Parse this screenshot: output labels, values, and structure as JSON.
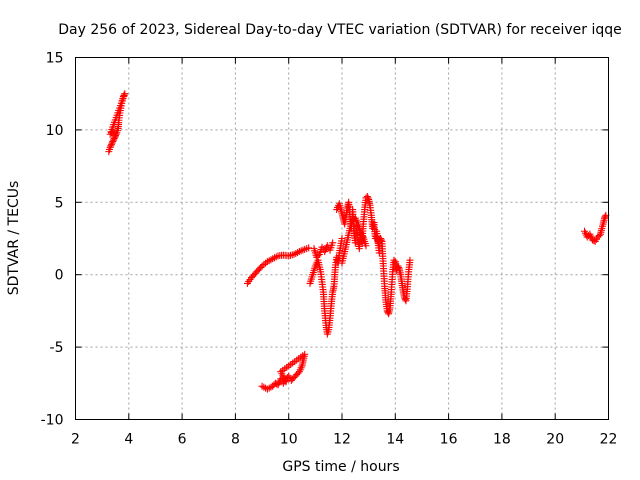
{
  "chart_data": {
    "type": "scatter",
    "title": "Day 256 of 2023, Sidereal Day-to-day VTEC variation (SDTVAR) for receiver iqqe",
    "xlabel": "GPS time / hours",
    "ylabel": "SDTVAR / TECUs",
    "xlim": [
      2,
      22
    ],
    "ylim": [
      -10,
      15
    ],
    "xticks": [
      2,
      4,
      6,
      8,
      10,
      12,
      14,
      16,
      18,
      20,
      22
    ],
    "yticks": [
      15,
      10,
      5,
      0,
      -5,
      -10
    ],
    "grid": true,
    "marker": "plus",
    "series": [
      {
        "name": "SDTVAR",
        "color": "#ff0000",
        "tracks": [
          {
            "x": [
              3.25,
              3.3,
              3.35,
              3.4,
              3.45,
              3.5,
              3.55,
              3.6,
              3.62,
              3.65,
              3.7,
              3.75,
              3.8,
              3.85,
              3.3,
              3.4,
              3.5
            ],
            "y": [
              8.5,
              8.8,
              9.0,
              9.2,
              9.4,
              9.6,
              9.8,
              10.1,
              10.5,
              11.0,
              11.5,
              12.0,
              12.3,
              12.5,
              9.7,
              9.9,
              9.6
            ]
          },
          {
            "x": [
              8.45,
              8.6,
              8.8,
              9.0,
              9.2,
              9.4,
              9.6,
              9.8,
              10.0,
              10.2,
              10.4,
              10.6,
              10.75
            ],
            "y": [
              -0.6,
              -0.2,
              0.2,
              0.6,
              0.9,
              1.1,
              1.3,
              1.35,
              1.3,
              1.4,
              1.6,
              1.75,
              1.85
            ]
          },
          {
            "x": [
              9.0,
              9.2,
              9.4,
              9.5,
              9.6,
              9.7,
              9.8,
              9.9,
              10.0,
              10.1,
              10.2,
              10.3,
              10.4,
              10.5,
              10.55,
              10.6,
              9.7,
              9.9
            ],
            "y": [
              -7.7,
              -7.9,
              -7.7,
              -7.5,
              -7.6,
              -7.2,
              -7.5,
              -7.2,
              -7.0,
              -7.3,
              -7.1,
              -6.9,
              -6.7,
              -6.3,
              -5.9,
              -5.5,
              -6.7,
              -7.4
            ]
          },
          {
            "x": [
              10.8,
              10.9,
              11.0,
              11.1,
              11.2,
              11.3,
              11.35,
              11.4,
              11.45,
              11.5,
              11.55,
              11.6,
              11.65,
              11.7,
              11.75,
              11.8,
              11.85,
              11.9,
              12.0
            ],
            "y": [
              -0.6,
              0.0,
              0.6,
              1.0,
              0.2,
              -1.2,
              -2.5,
              -3.5,
              -4.1,
              -3.8,
              -3.0,
              -2.0,
              -1.2,
              -0.8,
              0.5,
              1.2,
              0.8,
              1.5,
              2.5
            ]
          },
          {
            "x": [
              10.95,
              11.05,
              11.15,
              11.25,
              11.35,
              11.45,
              11.55,
              11.65
            ],
            "y": [
              1.8,
              1.2,
              1.4,
              1.9,
              1.6,
              2.0,
              1.7,
              2.2
            ]
          },
          {
            "x": [
              11.8,
              11.9,
              12.0,
              12.1,
              12.2,
              12.25,
              12.3,
              12.35,
              12.4,
              12.45,
              12.5,
              12.55,
              12.6,
              12.65,
              12.7,
              12.75,
              12.8,
              12.85,
              12.9,
              12.95,
              13.0,
              13.05,
              13.1,
              13.15,
              13.2,
              13.25,
              13.3,
              13.35,
              13.4
            ],
            "y": [
              4.5,
              4.9,
              4.2,
              3.5,
              4.6,
              5.0,
              4.0,
              3.2,
              4.5,
              3.0,
              2.2,
              3.4,
              2.4,
              1.8,
              2.9,
              2.2,
              3.5,
              4.5,
              5.3,
              5.4,
              5.2,
              4.8,
              4.1,
              3.2,
              3.6,
              2.5,
              3.0,
              2.2,
              1.5
            ]
          },
          {
            "x": [
              12.0,
              12.1,
              12.2,
              12.3,
              12.4,
              12.5,
              12.6,
              12.7,
              12.8,
              12.9
            ],
            "y": [
              0.8,
              1.6,
              2.4,
              3.2,
              3.8,
              3.9,
              3.5,
              2.8,
              2.6,
              2.0
            ]
          },
          {
            "x": [
              13.3,
              13.4,
              13.45,
              13.5,
              13.55,
              13.6,
              13.65,
              13.7,
              13.75,
              13.8,
              13.85,
              13.9,
              13.95,
              14.0,
              14.05,
              14.1,
              14.15,
              14.2,
              14.25,
              14.3,
              14.35,
              14.4,
              14.45,
              14.5,
              14.55
            ],
            "y": [
              2.6,
              2.0,
              2.5,
              2.3,
              0.6,
              -0.8,
              -1.9,
              -2.5,
              -2.7,
              -2.3,
              -1.2,
              0.2,
              1.0,
              0.9,
              0.3,
              0.6,
              0.4,
              0.0,
              -0.6,
              -1.2,
              -1.6,
              -1.8,
              -1.0,
              0.2,
              1.0
            ]
          },
          {
            "x": [
              21.1,
              21.2,
              21.3,
              21.4,
              21.5,
              21.6,
              21.7,
              21.75,
              21.8,
              21.85,
              21.9
            ],
            "y": [
              3.0,
              2.6,
              2.8,
              2.4,
              2.3,
              2.6,
              2.8,
              3.2,
              3.5,
              3.9,
              4.1
            ]
          }
        ]
      }
    ]
  }
}
